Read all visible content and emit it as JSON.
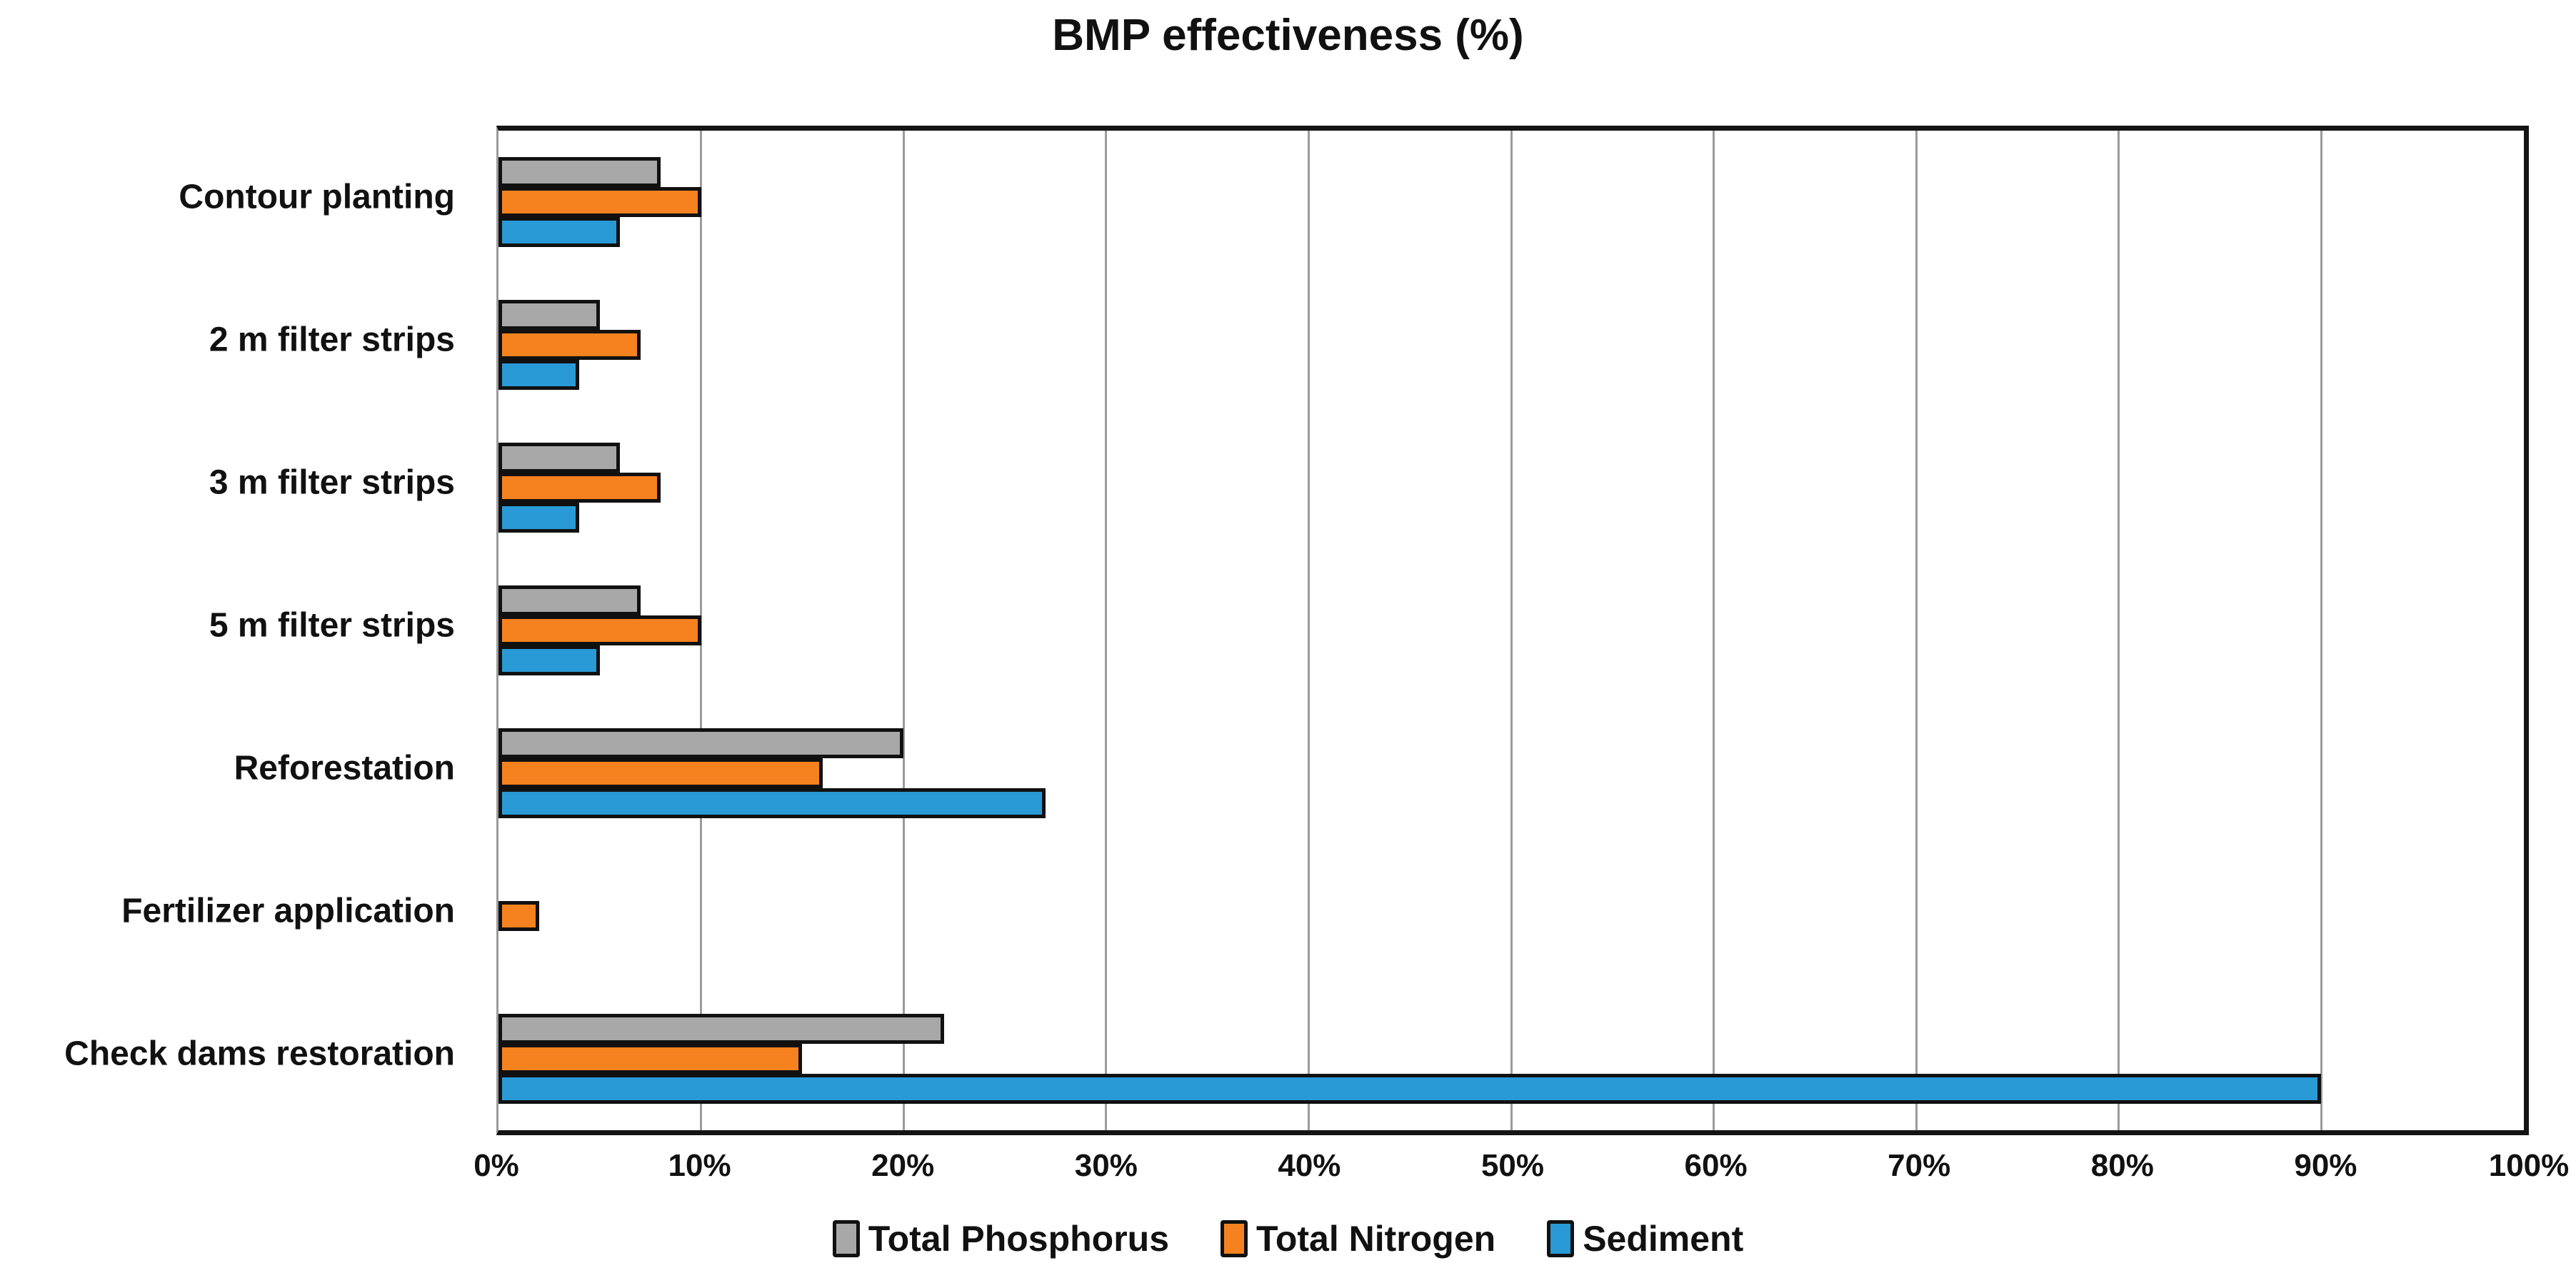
{
  "chart_data": {
    "type": "bar",
    "orientation": "horizontal",
    "title": "BMP effectiveness (%)",
    "categories": [
      "Contour planting",
      "2 m filter strips",
      "3 m filter strips",
      "5 m filter strips",
      "Reforestation",
      "Fertilizer application",
      "Check dams restoration"
    ],
    "series": [
      {
        "name": "Total Phosphorus",
        "color": "#A8A8A8",
        "values": [
          8,
          5,
          6,
          7,
          20,
          0,
          22
        ]
      },
      {
        "name": "Total Nitrogen",
        "color": "#F6821F",
        "values": [
          10,
          7,
          8,
          10,
          16,
          2,
          15
        ]
      },
      {
        "name": "Sediment",
        "color": "#2A9AD6",
        "values": [
          6,
          4,
          4,
          5,
          27,
          0,
          90
        ]
      }
    ],
    "x_axis": {
      "min": 0,
      "max": 100,
      "tick_step": 10,
      "tick_labels": [
        "0%",
        "10%",
        "20%",
        "30%",
        "40%",
        "50%",
        "60%",
        "70%",
        "80%",
        "90%",
        "100%"
      ]
    },
    "grid": true,
    "legend_position": "bottom",
    "gridline_color": "#9b9b9b",
    "bar_border_color": "#111111"
  }
}
